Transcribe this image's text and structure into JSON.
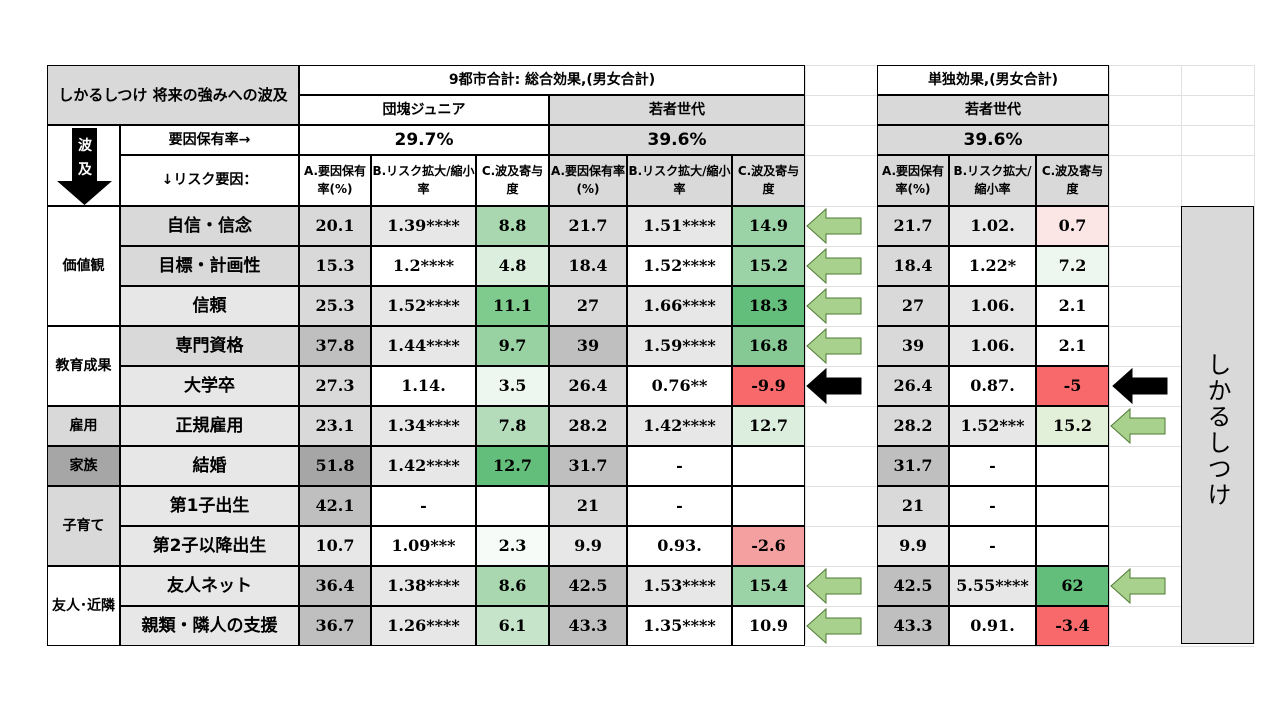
{
  "table": {
    "title": "しかるしつけ 将来の強みへの波及",
    "section_total": "9都市合計: 総合効果,(男女合計)",
    "section_single": "単独効果,(男女合計)",
    "group_dankai": "団塊ジュニア",
    "group_wakamono": "若者世代",
    "group_wakamono_single": "若者世代",
    "factor_rate_label": "要因保有率→",
    "factor_rate_dankai": "29.7%",
    "factor_rate_wakamono": "39.6%",
    "factor_rate_single": "39.6%",
    "propagation_label": "波及",
    "risk_factor_label": "↓リスク要因：",
    "col_a": "A.要因保有率(%)",
    "col_b": "B.リスク拡大/縮小率",
    "col_c": "C.波及寄与度",
    "col_a2": "A.要因保有率(%)",
    "col_b2": "B.リスク拡大/縮小率",
    "col_c2": "C.波及寄与度",
    "col_a3": "A.要因保有率(%)",
    "col_b3": "B.リスク拡大/縮小率",
    "col_c3": "C.波及寄与度",
    "side_label": "しかるしつけ",
    "groups": [
      {
        "label": "価値観"
      },
      {
        "label": "教育成果"
      },
      {
        "label": "雇用"
      },
      {
        "label": "家族"
      },
      {
        "label": "子育て"
      },
      {
        "label": "友人･近隣"
      }
    ],
    "rows": [
      {
        "label": "自信・信念",
        "d_a": "20.1",
        "d_b": "1.39****",
        "d_c": "8.8",
        "w_a": "21.7",
        "w_b": "1.51****",
        "w_c": "14.9",
        "s_a": "21.7",
        "s_b": "1.02.",
        "s_c": "0.7"
      },
      {
        "label": "目標・計画性",
        "d_a": "15.3",
        "d_b": "1.2****",
        "d_c": "4.8",
        "w_a": "18.4",
        "w_b": "1.52****",
        "w_c": "15.2",
        "s_a": "18.4",
        "s_b": "1.22*",
        "s_c": "7.2"
      },
      {
        "label": "信頼",
        "d_a": "25.3",
        "d_b": "1.52****",
        "d_c": "11.1",
        "w_a": "27",
        "w_b": "1.66****",
        "w_c": "18.3",
        "s_a": "27",
        "s_b": "1.06.",
        "s_c": "2.1"
      },
      {
        "label": "専門資格",
        "d_a": "37.8",
        "d_b": "1.44****",
        "d_c": "9.7",
        "w_a": "39",
        "w_b": "1.59****",
        "w_c": "16.8",
        "s_a": "39",
        "s_b": "1.06.",
        "s_c": "2.1"
      },
      {
        "label": "大学卒",
        "d_a": "27.3",
        "d_b": "1.14.",
        "d_c": "3.5",
        "w_a": "26.4",
        "w_b": "0.76**",
        "w_c": "-9.9",
        "s_a": "26.4",
        "s_b": "0.87.",
        "s_c": "-5"
      },
      {
        "label": "正規雇用",
        "d_a": "23.1",
        "d_b": "1.34****",
        "d_c": "7.8",
        "w_a": "28.2",
        "w_b": "1.42****",
        "w_c": "12.7",
        "s_a": "28.2",
        "s_b": "1.52***",
        "s_c": "15.2"
      },
      {
        "label": "結婚",
        "d_a": "51.8",
        "d_b": "1.42****",
        "d_c": "12.7",
        "w_a": "31.7",
        "w_b": "-",
        "w_c": "",
        "s_a": "31.7",
        "s_b": "-",
        "s_c": ""
      },
      {
        "label": "第1子出生",
        "d_a": "42.1",
        "d_b": "-",
        "d_c": "",
        "w_a": "21",
        "w_b": "-",
        "w_c": "",
        "s_a": "21",
        "s_b": "-",
        "s_c": ""
      },
      {
        "label": "第2子以降出生",
        "d_a": "10.7",
        "d_b": "1.09***",
        "d_c": "2.3",
        "w_a": "9.9",
        "w_b": "0.93.",
        "w_c": "-2.6",
        "s_a": "9.9",
        "s_b": "-",
        "s_c": ""
      },
      {
        "label": "友人ネット",
        "d_a": "36.4",
        "d_b": "1.38****",
        "d_c": "8.6",
        "w_a": "42.5",
        "w_b": "1.53****",
        "w_c": "15.4",
        "s_a": "42.5",
        "s_b": "5.55****",
        "s_c": "62"
      },
      {
        "label": "親類・隣人の支援",
        "d_a": "36.7",
        "d_b": "1.26****",
        "d_c": "6.1",
        "w_a": "43.3",
        "w_b": "1.35****",
        "w_c": "10.9",
        "s_a": "43.3",
        "s_b": "0.91.",
        "s_c": "-3.4"
      }
    ],
    "colors": {
      "green_light": "#e2f0d9",
      "green_mid": "#a9d18e",
      "green_dark": "#63be7b",
      "red_light": "#fbe5e5",
      "red_mid": "#f4a0a0",
      "red_dark": "#f8696b",
      "gray": "#d9d9d9",
      "dark_gray": "#bfbfbf",
      "arrow_green": "#a9d18e",
      "arrow_black": "#000000"
    }
  }
}
